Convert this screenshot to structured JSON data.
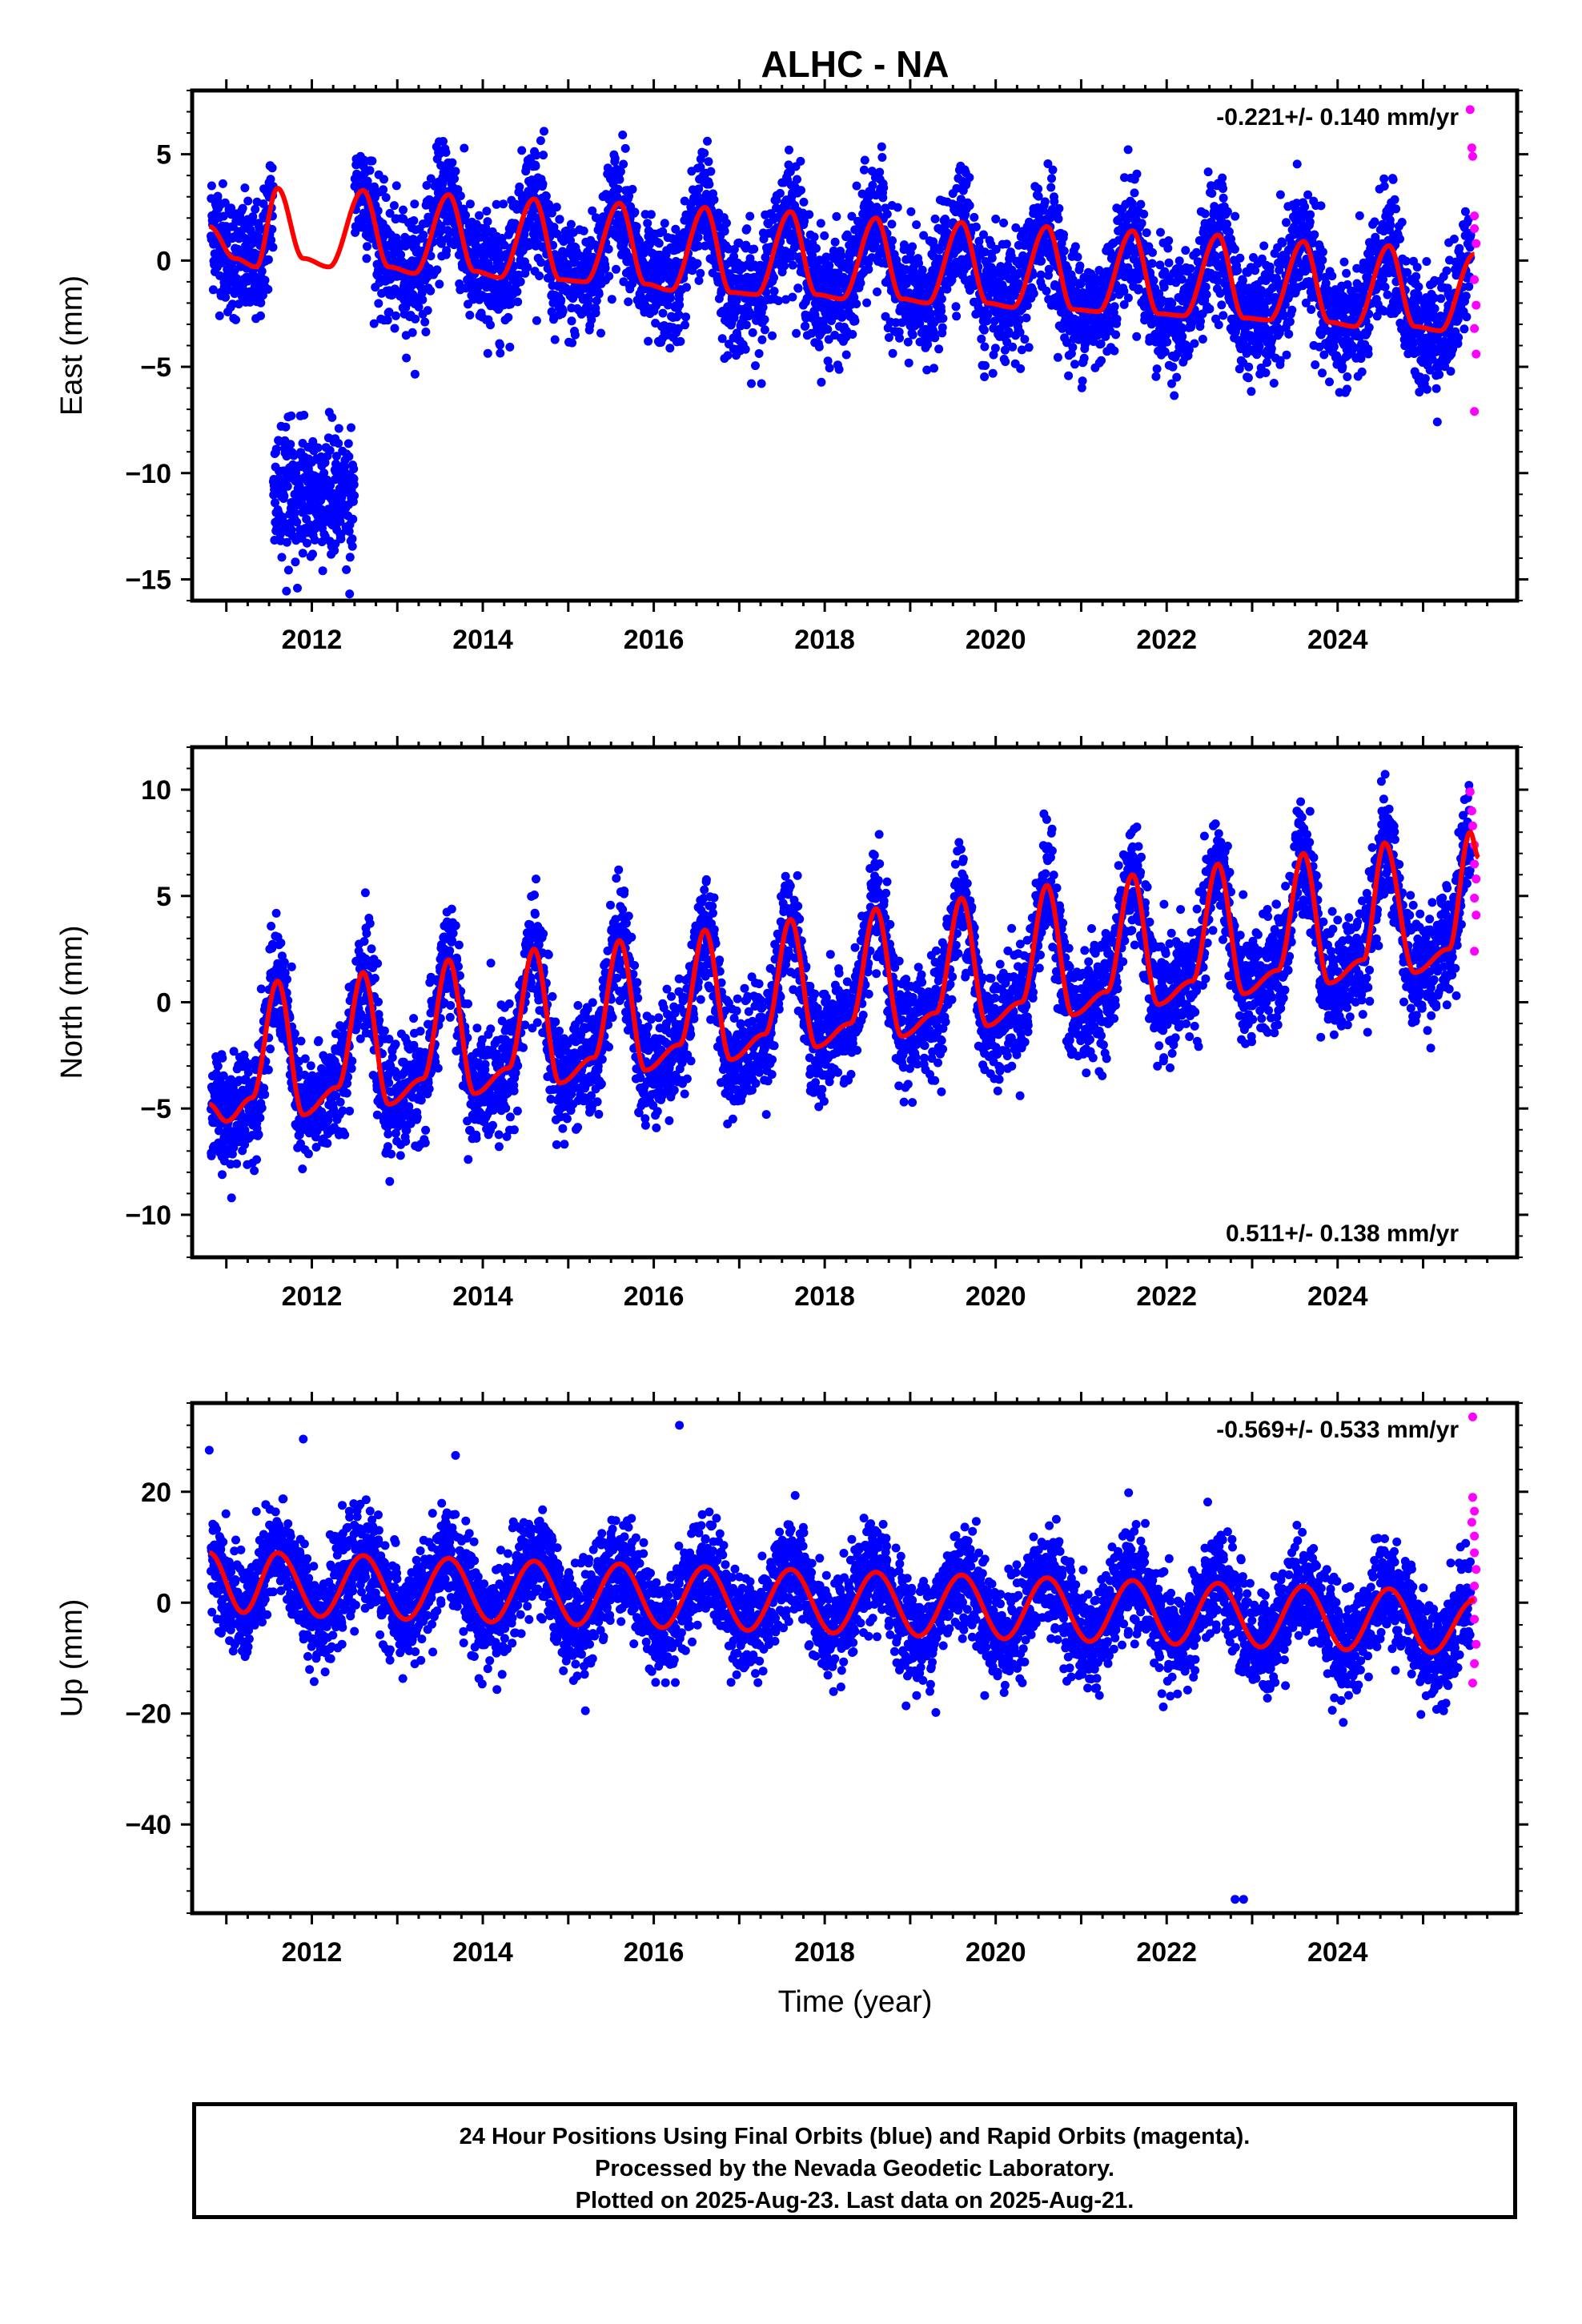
{
  "chart_data": {
    "title": "ALHC - NA",
    "type": "scatter",
    "xlabel": "Time (year)",
    "x_ticks": [
      "2012",
      "2014",
      "2016",
      "2018",
      "2020",
      "2022",
      "2024"
    ],
    "xlim": [
      2010.6,
      2026.1
    ],
    "series_colors": {
      "final": "#0000ff",
      "rapid": "#ff00ff",
      "model": "#ff0000"
    },
    "panels": [
      {
        "name": "east",
        "ylabel": "East (mm)",
        "ylim": [
          -16,
          8
        ],
        "y_ticks": [
          5,
          0,
          -5,
          -10,
          -15
        ],
        "y_tick_labels": [
          "5",
          "0",
          "−5",
          "−10",
          "−15"
        ],
        "rate_text": "-0.221+/- 0.140 mm/yr",
        "rate_position": "top-right",
        "trend": {
          "start": [
            2010.8,
            0.5
          ],
          "end": [
            2025.6,
            -2.8
          ]
        },
        "seasonal_amplitude": 2.3,
        "noise": 1.4,
        "offset_segment": {
          "x_range": [
            2011.55,
            2012.5
          ],
          "mean": -11.0,
          "spread": 1.5
        },
        "rapid_points": [
          [
            2025.55,
            7.1
          ],
          [
            2025.57,
            5.3
          ],
          [
            2025.58,
            4.9
          ],
          [
            2025.6,
            2.1
          ],
          [
            2025.6,
            1.5
          ],
          [
            2025.62,
            0.8
          ],
          [
            2025.6,
            -0.9
          ],
          [
            2025.62,
            -2.1
          ],
          [
            2025.6,
            -3.2
          ],
          [
            2025.62,
            -4.4
          ],
          [
            2025.6,
            -7.1
          ]
        ],
        "model_curve": [
          [
            2010.8,
            1.6
          ],
          [
            2011.1,
            0.1
          ],
          [
            2011.35,
            -0.3
          ],
          [
            2011.6,
            3.4
          ],
          [
            2011.9,
            0.1
          ],
          [
            2012.2,
            -0.3
          ],
          [
            2012.6,
            3.3
          ],
          [
            2012.9,
            -0.3
          ],
          [
            2013.2,
            -0.6
          ],
          [
            2013.6,
            3.1
          ],
          [
            2013.9,
            -0.5
          ],
          [
            2014.2,
            -0.8
          ],
          [
            2014.6,
            2.9
          ],
          [
            2014.9,
            -0.9
          ],
          [
            2015.2,
            -1.0
          ],
          [
            2015.6,
            2.7
          ],
          [
            2015.9,
            -1.1
          ],
          [
            2016.2,
            -1.4
          ],
          [
            2016.6,
            2.5
          ],
          [
            2016.9,
            -1.5
          ],
          [
            2017.2,
            -1.6
          ],
          [
            2017.6,
            2.3
          ],
          [
            2017.9,
            -1.6
          ],
          [
            2018.2,
            -1.8
          ],
          [
            2018.6,
            2.0
          ],
          [
            2018.9,
            -1.8
          ],
          [
            2019.2,
            -2.0
          ],
          [
            2019.6,
            1.8
          ],
          [
            2019.9,
            -2.0
          ],
          [
            2020.2,
            -2.2
          ],
          [
            2020.6,
            1.6
          ],
          [
            2020.9,
            -2.3
          ],
          [
            2021.2,
            -2.4
          ],
          [
            2021.6,
            1.4
          ],
          [
            2021.9,
            -2.5
          ],
          [
            2022.2,
            -2.6
          ],
          [
            2022.6,
            1.2
          ],
          [
            2022.9,
            -2.7
          ],
          [
            2023.2,
            -2.8
          ],
          [
            2023.6,
            0.9
          ],
          [
            2023.9,
            -2.9
          ],
          [
            2024.2,
            -3.1
          ],
          [
            2024.6,
            0.7
          ],
          [
            2024.9,
            -3.1
          ],
          [
            2025.2,
            -3.3
          ],
          [
            2025.6,
            0.3
          ]
        ]
      },
      {
        "name": "north",
        "ylabel": "North (mm)",
        "ylim": [
          -12,
          12
        ],
        "y_ticks": [
          10,
          5,
          0,
          -5,
          -10
        ],
        "y_tick_labels": [
          "10",
          "5",
          "0",
          "−5",
          "−10"
        ],
        "rate_text": "0.511+/- 0.138 mm/yr",
        "rate_position": "bottom-right",
        "trend": {
          "start": [
            2010.8,
            -3.5
          ],
          "end": [
            2025.6,
            4.5
          ]
        },
        "seasonal_amplitude": 3.3,
        "noise": 1.3,
        "rapid_points": [
          [
            2025.55,
            9.9
          ],
          [
            2025.57,
            9.0
          ],
          [
            2025.58,
            8.3
          ],
          [
            2025.6,
            7.4
          ],
          [
            2025.6,
            6.5
          ],
          [
            2025.62,
            5.8
          ],
          [
            2025.6,
            4.9
          ],
          [
            2025.62,
            4.1
          ],
          [
            2025.6,
            2.4
          ]
        ],
        "model_curve": [
          [
            2010.8,
            -4.8
          ],
          [
            2011.0,
            -5.6
          ],
          [
            2011.3,
            -4.5
          ],
          [
            2011.6,
            1.0
          ],
          [
            2011.9,
            -5.3
          ],
          [
            2012.3,
            -4.0
          ],
          [
            2012.6,
            1.4
          ],
          [
            2012.9,
            -4.8
          ],
          [
            2013.3,
            -3.6
          ],
          [
            2013.6,
            2.0
          ],
          [
            2013.9,
            -4.3
          ],
          [
            2014.3,
            -3.1
          ],
          [
            2014.6,
            2.5
          ],
          [
            2014.9,
            -3.8
          ],
          [
            2015.3,
            -2.6
          ],
          [
            2015.6,
            2.9
          ],
          [
            2015.9,
            -3.2
          ],
          [
            2016.3,
            -2.0
          ],
          [
            2016.6,
            3.4
          ],
          [
            2016.9,
            -2.7
          ],
          [
            2017.3,
            -1.5
          ],
          [
            2017.6,
            3.9
          ],
          [
            2017.9,
            -2.1
          ],
          [
            2018.3,
            -1.0
          ],
          [
            2018.6,
            4.4
          ],
          [
            2018.9,
            -1.6
          ],
          [
            2019.3,
            -0.5
          ],
          [
            2019.6,
            4.9
          ],
          [
            2019.9,
            -1.1
          ],
          [
            2020.3,
            0.0
          ],
          [
            2020.6,
            5.5
          ],
          [
            2020.9,
            -0.6
          ],
          [
            2021.3,
            0.5
          ],
          [
            2021.6,
            6.0
          ],
          [
            2021.9,
            -0.1
          ],
          [
            2022.3,
            1.0
          ],
          [
            2022.6,
            6.5
          ],
          [
            2022.9,
            0.4
          ],
          [
            2023.3,
            1.5
          ],
          [
            2023.6,
            7.0
          ],
          [
            2023.9,
            0.9
          ],
          [
            2024.3,
            2.0
          ],
          [
            2024.55,
            7.5
          ],
          [
            2024.9,
            1.4
          ],
          [
            2025.3,
            2.5
          ],
          [
            2025.55,
            8.0
          ],
          [
            2025.65,
            6.8
          ]
        ]
      },
      {
        "name": "up",
        "ylabel": "Up (mm)",
        "ylim": [
          -56,
          36
        ],
        "y_ticks": [
          20,
          0,
          -20,
          -40
        ],
        "y_tick_labels": [
          "20",
          "0",
          "−20",
          "−40"
        ],
        "rate_text": "-0.569+/- 0.533 mm/yr",
        "rate_position": "top-right",
        "trend": {
          "start": [
            2010.8,
            3.5
          ],
          "end": [
            2025.6,
            -3.5
          ]
        },
        "seasonal_amplitude": 5.6,
        "noise": 4.5,
        "outliers": [
          [
            2010.8,
            27.5
          ],
          [
            2011.9,
            29.5
          ],
          [
            2016.3,
            32.0
          ],
          [
            2022.8,
            -53.5
          ],
          [
            2022.9,
            -53.5
          ],
          [
            2015.2,
            -19.5
          ],
          [
            2019.3,
            -19.8
          ]
        ],
        "rapid_points": [
          [
            2025.58,
            33.5
          ],
          [
            2025.58,
            19.0
          ],
          [
            2025.6,
            16.5
          ],
          [
            2025.57,
            14.5
          ],
          [
            2025.6,
            12.0
          ],
          [
            2025.6,
            9.0
          ],
          [
            2025.62,
            6.0
          ],
          [
            2025.6,
            3.0
          ],
          [
            2025.58,
            0.5
          ],
          [
            2025.6,
            -3.0
          ],
          [
            2025.62,
            -7.5
          ],
          [
            2025.6,
            -11.0
          ],
          [
            2025.58,
            -14.5
          ]
        ],
        "model_curve": [
          [
            2010.8,
            9.0
          ],
          [
            2011.2,
            -1.8
          ],
          [
            2011.6,
            9.0
          ],
          [
            2012.1,
            -2.5
          ],
          [
            2012.6,
            8.5
          ],
          [
            2013.1,
            -3.0
          ],
          [
            2013.6,
            8.0
          ],
          [
            2014.1,
            -3.5
          ],
          [
            2014.6,
            7.5
          ],
          [
            2015.1,
            -4.0
          ],
          [
            2015.6,
            7.0
          ],
          [
            2016.1,
            -4.5
          ],
          [
            2016.6,
            6.5
          ],
          [
            2017.1,
            -5.0
          ],
          [
            2017.6,
            6.0
          ],
          [
            2018.1,
            -5.5
          ],
          [
            2018.6,
            5.5
          ],
          [
            2019.1,
            -6.0
          ],
          [
            2019.6,
            5.0
          ],
          [
            2020.1,
            -6.5
          ],
          [
            2020.6,
            4.5
          ],
          [
            2021.1,
            -7.0
          ],
          [
            2021.6,
            4.0
          ],
          [
            2022.1,
            -7.5
          ],
          [
            2022.6,
            3.5
          ],
          [
            2023.1,
            -8.0
          ],
          [
            2023.6,
            3.0
          ],
          [
            2024.1,
            -8.5
          ],
          [
            2024.6,
            2.5
          ],
          [
            2025.1,
            -9.0
          ],
          [
            2025.6,
            0.5
          ]
        ]
      }
    ]
  },
  "footer": {
    "line1": "24 Hour Positions Using Final Orbits (blue) and Rapid Orbits (magenta).",
    "line2": "Processed by the Nevada Geodetic Laboratory.",
    "line3": "Plotted on 2025-Aug-23. Last data on 2025-Aug-21."
  }
}
